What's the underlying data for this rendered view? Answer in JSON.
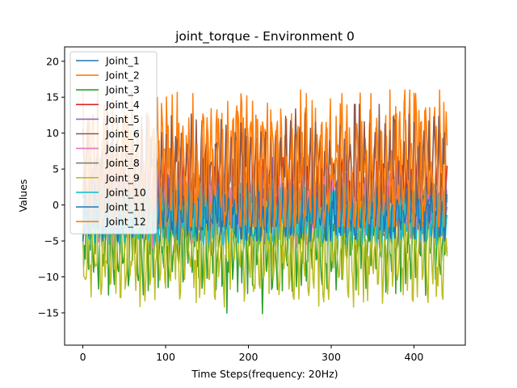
{
  "chart_data": {
    "type": "line",
    "title": "joint_torque - Environment 0",
    "xlabel": "Time Steps(frequency: 20Hz)",
    "ylabel": "Values",
    "xlim": [
      -22,
      462
    ],
    "ylim": [
      -19.5,
      22
    ],
    "xticks": [
      0,
      100,
      200,
      300,
      400
    ],
    "xtick_labels": [
      "0",
      "100",
      "200",
      "300",
      "400"
    ],
    "yticks": [
      -15,
      -10,
      -5,
      0,
      5,
      10,
      15,
      20
    ],
    "ytick_labels": [
      "−15",
      "−10",
      "−5",
      "0",
      "5",
      "10",
      "15",
      "20"
    ],
    "grid": false,
    "legend_position": "upper-left",
    "x_count": 441,
    "series": [
      {
        "name": "Joint_1",
        "color": "#1f77b4",
        "base": 0.3,
        "amp": 2.5,
        "min": -4.5,
        "max": 5.5
      },
      {
        "name": "Joint_2",
        "color": "#ff7f0e",
        "base": 5.0,
        "amp": 6.5,
        "min": -3.0,
        "max": 16.0
      },
      {
        "name": "Joint_3",
        "color": "#2ca02c",
        "base": -5.5,
        "amp": 4.0,
        "min": -15.5,
        "max": 1.5
      },
      {
        "name": "Joint_4",
        "color": "#d62728",
        "base": 1.5,
        "amp": 3.0,
        "min": -3.5,
        "max": 8.5
      },
      {
        "name": "Joint_5",
        "color": "#9467bd",
        "base": 1.0,
        "amp": 2.5,
        "min": -3.5,
        "max": 7.0
      },
      {
        "name": "Joint_6",
        "color": "#8c564b",
        "base": 4.0,
        "amp": 5.0,
        "min": -2.5,
        "max": 14.0
      },
      {
        "name": "Joint_7",
        "color": "#e377c2",
        "base": -1.0,
        "amp": 2.5,
        "min": -6.0,
        "max": 4.0
      },
      {
        "name": "Joint_8",
        "color": "#7f7f7f",
        "base": -1.5,
        "amp": 2.5,
        "min": -6.5,
        "max": 3.5
      },
      {
        "name": "Joint_9",
        "color": "#bcbd22",
        "base": -6.5,
        "amp": 4.5,
        "min": -17.8,
        "max": 0.5
      },
      {
        "name": "Joint_10",
        "color": "#17becf",
        "base": -1.5,
        "amp": 2.5,
        "min": -5.5,
        "max": 3.0
      },
      {
        "name": "Joint_11",
        "color": "#1f77b4",
        "base": -1.0,
        "amp": 2.5,
        "min": -5.0,
        "max": 3.0
      },
      {
        "name": "Joint_12",
        "color": "#ff7f0e",
        "base": 4.0,
        "amp": 6.0,
        "min": -3.0,
        "max": 15.5
      }
    ]
  }
}
